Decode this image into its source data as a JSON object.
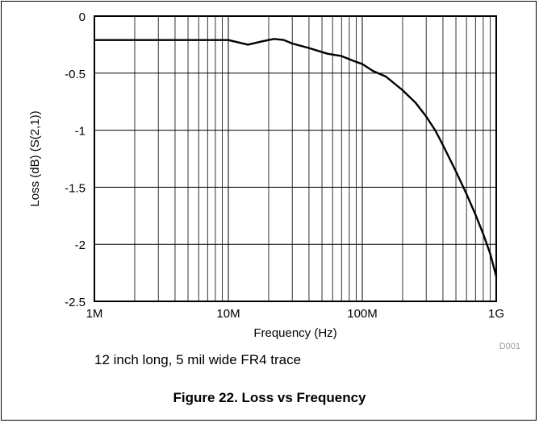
{
  "chart_data": {
    "type": "line",
    "xscale": "log",
    "xlim": [
      1000000,
      1000000000
    ],
    "ylim": [
      -2.5,
      0
    ],
    "grid": true,
    "xlabel": "Frequency (Hz)",
    "ylabel": "Loss (dB) (S(2,1))",
    "x_ticks": [
      {
        "value": 1000000,
        "label": "1M"
      },
      {
        "value": 10000000,
        "label": "10M"
      },
      {
        "value": 100000000,
        "label": "100M"
      },
      {
        "value": 1000000000,
        "label": "1G"
      }
    ],
    "y_ticks": [
      {
        "value": 0,
        "label": "0"
      },
      {
        "value": -0.5,
        "label": "-0.5"
      },
      {
        "value": -1,
        "label": "-1"
      },
      {
        "value": -1.5,
        "label": "-1.5"
      },
      {
        "value": -2,
        "label": "-2"
      },
      {
        "value": -2.5,
        "label": "-2.5"
      }
    ],
    "series": [
      {
        "color": "#000000",
        "x": [
          1000000,
          2000000,
          5000000,
          10000000,
          14000000,
          18000000,
          22000000,
          26000000,
          30000000,
          40000000,
          55000000,
          70000000,
          85000000,
          100000000,
          120000000,
          150000000,
          200000000,
          250000000,
          300000000,
          350000000,
          400000000,
          500000000,
          600000000,
          700000000,
          800000000,
          900000000,
          1000000000
        ],
        "y": [
          -0.21,
          -0.21,
          -0.21,
          -0.21,
          -0.25,
          -0.22,
          -0.2,
          -0.21,
          -0.24,
          -0.28,
          -0.33,
          -0.35,
          -0.39,
          -0.42,
          -0.48,
          -0.53,
          -0.65,
          -0.76,
          -0.88,
          -1.0,
          -1.13,
          -1.36,
          -1.56,
          -1.74,
          -1.91,
          -2.08,
          -2.28
        ]
      }
    ],
    "annotation": "D001"
  },
  "note": "12 inch long, 5 mil wide FR4 trace",
  "caption": "Figure 22. Loss vs Frequency"
}
